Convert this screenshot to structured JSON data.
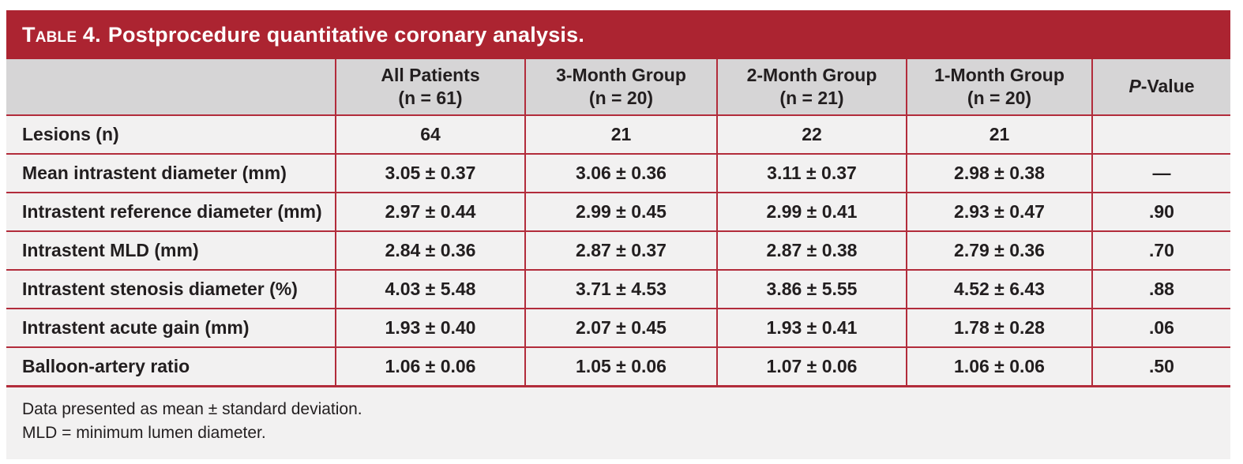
{
  "table": {
    "title_label": "Table 4.",
    "title_text": "Postprocedure quantitative coronary analysis.",
    "accent_color": "#ac2431",
    "header_bg_color": "#d6d5d6",
    "body_bg_color": "#f2f1f1",
    "columns": {
      "label": "",
      "all_patients_line1": "All Patients",
      "all_patients_line2": "(n = 61)",
      "group3_line1": "3-Month Group",
      "group3_line2": "(n = 20)",
      "group2_line1": "2-Month Group",
      "group2_line2": "(n = 21)",
      "group1_line1": "1-Month Group",
      "group1_line2": "(n = 20)",
      "pvalue_italic": "P",
      "pvalue_rest": "-Value"
    },
    "rows": [
      {
        "label": "Lesions (n)",
        "values": [
          "64",
          "21",
          "22",
          "21",
          ""
        ]
      },
      {
        "label": "Mean intrastent diameter (mm)",
        "values": [
          "3.05 ± 0.37",
          "3.06 ± 0.36",
          "3.11 ± 0.37",
          "2.98 ± 0.38",
          "—"
        ]
      },
      {
        "label": "Intrastent reference diameter (mm)",
        "values": [
          "2.97 ± 0.44",
          "2.99 ± 0.45",
          "2.99 ± 0.41",
          "2.93 ± 0.47",
          ".90"
        ]
      },
      {
        "label": "Intrastent MLD (mm)",
        "values": [
          "2.84 ± 0.36",
          "2.87 ± 0.37",
          "2.87 ± 0.38",
          "2.79 ± 0.36",
          ".70"
        ]
      },
      {
        "label": "Intrastent stenosis diameter (%)",
        "values": [
          "4.03 ± 5.48",
          "3.71 ± 4.53",
          "3.86 ± 5.55",
          "4.52 ± 6.43",
          ".88"
        ]
      },
      {
        "label": "Intrastent acute gain (mm)",
        "values": [
          "1.93 ± 0.40",
          "2.07 ± 0.45",
          "1.93 ± 0.41",
          "1.78 ± 0.28",
          ".06"
        ]
      },
      {
        "label": "Balloon-artery ratio",
        "values": [
          "1.06 ± 0.06",
          "1.05 ± 0.06",
          "1.07 ± 0.06",
          "1.06 ± 0.06",
          ".50"
        ]
      }
    ],
    "footnotes": [
      "Data presented as mean ± standard deviation.",
      "MLD = minimum lumen diameter."
    ]
  }
}
